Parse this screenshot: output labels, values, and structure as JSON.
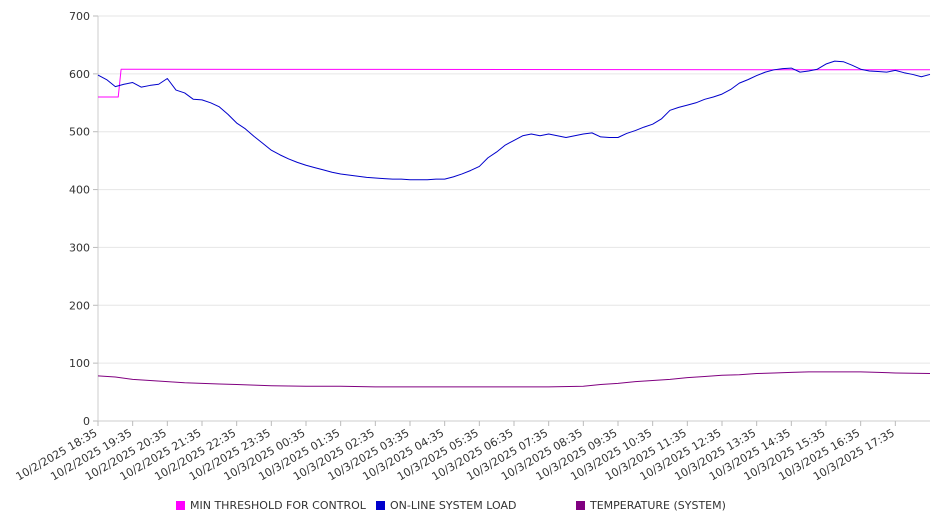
{
  "chart_data": {
    "type": "line",
    "ylim": [
      0,
      700
    ],
    "yticks": [
      0,
      100,
      200,
      300,
      400,
      500,
      600,
      700
    ],
    "x_start": "10/2/2025 18:35",
    "x_end": "10/3/2025 18:35",
    "x_tick_labels": [
      "10/2/2025 18:35",
      "10/2/2025 19:35",
      "10/2/2025 20:35",
      "10/2/2025 21:35",
      "10/2/2025 22:35",
      "10/2/2025 23:35",
      "10/3/2025 00:35",
      "10/3/2025 01:35",
      "10/3/2025 02:35",
      "10/3/2025 03:35",
      "10/3/2025 04:35",
      "10/3/2025 05:35",
      "10/3/2025 06:35",
      "10/3/2025 07:35",
      "10/3/2025 08:35",
      "10/3/2025 09:35",
      "10/3/2025 10:35",
      "10/3/2025 11:35",
      "10/3/2025 12:35",
      "10/3/2025 13:35",
      "10/3/2025 14:35",
      "10/3/2025 15:35",
      "10/3/2025 16:35",
      "10/3/2025 17:35"
    ],
    "grid": true,
    "legend_position": "bottom",
    "series": [
      {
        "name": "MIN THRESHOLD FOR CONTROL",
        "color": "#ff00ff",
        "points": [
          [
            "10/2/2025 18:35",
            560
          ],
          [
            "10/2/2025 19:10",
            560
          ],
          [
            "10/2/2025 19:15",
            608
          ],
          [
            "10/3/2025 18:35",
            607
          ]
        ]
      },
      {
        "name": "ON-LINE SYSTEM LOAD",
        "color": "#0000cc",
        "points": [
          [
            "10/2/2025 18:35",
            598
          ],
          [
            "10/2/2025 18:50",
            590
          ],
          [
            "10/2/2025 19:05",
            578
          ],
          [
            "10/2/2025 19:20",
            582
          ],
          [
            "10/2/2025 19:35",
            585
          ],
          [
            "10/2/2025 19:50",
            577
          ],
          [
            "10/2/2025 20:05",
            580
          ],
          [
            "10/2/2025 20:20",
            582
          ],
          [
            "10/2/2025 20:35",
            592
          ],
          [
            "10/2/2025 20:50",
            572
          ],
          [
            "10/2/2025 21:05",
            567
          ],
          [
            "10/2/2025 21:20",
            556
          ],
          [
            "10/2/2025 21:35",
            555
          ],
          [
            "10/2/2025 21:50",
            550
          ],
          [
            "10/2/2025 22:05",
            543
          ],
          [
            "10/2/2025 22:20",
            530
          ],
          [
            "10/2/2025 22:35",
            515
          ],
          [
            "10/2/2025 22:50",
            505
          ],
          [
            "10/2/2025 23:05",
            492
          ],
          [
            "10/2/2025 23:20",
            480
          ],
          [
            "10/2/2025 23:35",
            468
          ],
          [
            "10/2/2025 23:50",
            460
          ],
          [
            "10/3/2025 00:05",
            453
          ],
          [
            "10/3/2025 00:20",
            447
          ],
          [
            "10/3/2025 00:35",
            442
          ],
          [
            "10/3/2025 00:50",
            438
          ],
          [
            "10/3/2025 01:05",
            434
          ],
          [
            "10/3/2025 01:20",
            430
          ],
          [
            "10/3/2025 01:35",
            427
          ],
          [
            "10/3/2025 01:50",
            425
          ],
          [
            "10/3/2025 02:05",
            423
          ],
          [
            "10/3/2025 02:20",
            421
          ],
          [
            "10/3/2025 02:35",
            420
          ],
          [
            "10/3/2025 02:50",
            419
          ],
          [
            "10/3/2025 03:05",
            418
          ],
          [
            "10/3/2025 03:20",
            418
          ],
          [
            "10/3/2025 03:35",
            417
          ],
          [
            "10/3/2025 03:50",
            417
          ],
          [
            "10/3/2025 04:05",
            417
          ],
          [
            "10/3/2025 04:20",
            418
          ],
          [
            "10/3/2025 04:35",
            418
          ],
          [
            "10/3/2025 04:50",
            422
          ],
          [
            "10/3/2025 05:05",
            427
          ],
          [
            "10/3/2025 05:20",
            433
          ],
          [
            "10/3/2025 05:35",
            440
          ],
          [
            "10/3/2025 05:50",
            455
          ],
          [
            "10/3/2025 06:05",
            465
          ],
          [
            "10/3/2025 06:20",
            477
          ],
          [
            "10/3/2025 06:35",
            485
          ],
          [
            "10/3/2025 06:50",
            493
          ],
          [
            "10/3/2025 07:05",
            496
          ],
          [
            "10/3/2025 07:20",
            493
          ],
          [
            "10/3/2025 07:35",
            496
          ],
          [
            "10/3/2025 07:50",
            493
          ],
          [
            "10/3/2025 08:05",
            490
          ],
          [
            "10/3/2025 08:20",
            493
          ],
          [
            "10/3/2025 08:35",
            496
          ],
          [
            "10/3/2025 08:50",
            498
          ],
          [
            "10/3/2025 09:05",
            491
          ],
          [
            "10/3/2025 09:20",
            490
          ],
          [
            "10/3/2025 09:35",
            490
          ],
          [
            "10/3/2025 09:50",
            497
          ],
          [
            "10/3/2025 10:05",
            502
          ],
          [
            "10/3/2025 10:20",
            508
          ],
          [
            "10/3/2025 10:35",
            513
          ],
          [
            "10/3/2025 10:50",
            522
          ],
          [
            "10/3/2025 11:05",
            537
          ],
          [
            "10/3/2025 11:20",
            542
          ],
          [
            "10/3/2025 11:35",
            546
          ],
          [
            "10/3/2025 11:50",
            550
          ],
          [
            "10/3/2025 12:05",
            556
          ],
          [
            "10/3/2025 12:20",
            560
          ],
          [
            "10/3/2025 12:35",
            565
          ],
          [
            "10/3/2025 12:50",
            573
          ],
          [
            "10/3/2025 13:05",
            584
          ],
          [
            "10/3/2025 13:20",
            590
          ],
          [
            "10/3/2025 13:35",
            597
          ],
          [
            "10/3/2025 13:50",
            603
          ],
          [
            "10/3/2025 14:05",
            607
          ],
          [
            "10/3/2025 14:20",
            609
          ],
          [
            "10/3/2025 14:35",
            610
          ],
          [
            "10/3/2025 14:50",
            603
          ],
          [
            "10/3/2025 15:05",
            605
          ],
          [
            "10/3/2025 15:20",
            608
          ],
          [
            "10/3/2025 15:35",
            617
          ],
          [
            "10/3/2025 15:50",
            622
          ],
          [
            "10/3/2025 16:05",
            621
          ],
          [
            "10/3/2025 16:20",
            615
          ],
          [
            "10/3/2025 16:35",
            608
          ],
          [
            "10/3/2025 16:50",
            605
          ],
          [
            "10/3/2025 17:05",
            604
          ],
          [
            "10/3/2025 17:20",
            603
          ],
          [
            "10/3/2025 17:35",
            606
          ],
          [
            "10/3/2025 17:50",
            602
          ],
          [
            "10/3/2025 18:05",
            599
          ],
          [
            "10/3/2025 18:20",
            595
          ],
          [
            "10/3/2025 18:35",
            599
          ]
        ]
      },
      {
        "name": "TEMPERATURE (SYSTEM)",
        "color": "#800080",
        "points": [
          [
            "10/2/2025 18:35",
            78
          ],
          [
            "10/2/2025 19:05",
            76
          ],
          [
            "10/2/2025 19:35",
            72
          ],
          [
            "10/2/2025 20:05",
            70
          ],
          [
            "10/2/2025 20:35",
            68
          ],
          [
            "10/2/2025 21:05",
            66
          ],
          [
            "10/2/2025 21:35",
            65
          ],
          [
            "10/2/2025 22:05",
            64
          ],
          [
            "10/2/2025 22:35",
            63
          ],
          [
            "10/2/2025 23:05",
            62
          ],
          [
            "10/2/2025 23:35",
            61
          ],
          [
            "10/3/2025 00:35",
            60
          ],
          [
            "10/3/2025 01:35",
            60
          ],
          [
            "10/3/2025 02:35",
            59
          ],
          [
            "10/3/2025 03:35",
            59
          ],
          [
            "10/3/2025 04:35",
            59
          ],
          [
            "10/3/2025 05:35",
            59
          ],
          [
            "10/3/2025 06:35",
            59
          ],
          [
            "10/3/2025 07:35",
            59
          ],
          [
            "10/3/2025 08:35",
            60
          ],
          [
            "10/3/2025 09:05",
            63
          ],
          [
            "10/3/2025 09:35",
            65
          ],
          [
            "10/3/2025 10:05",
            68
          ],
          [
            "10/3/2025 10:35",
            70
          ],
          [
            "10/3/2025 11:05",
            72
          ],
          [
            "10/3/2025 11:35",
            75
          ],
          [
            "10/3/2025 12:05",
            77
          ],
          [
            "10/3/2025 12:35",
            79
          ],
          [
            "10/3/2025 13:05",
            80
          ],
          [
            "10/3/2025 13:35",
            82
          ],
          [
            "10/3/2025 14:05",
            83
          ],
          [
            "10/3/2025 14:35",
            84
          ],
          [
            "10/3/2025 15:05",
            85
          ],
          [
            "10/3/2025 15:35",
            85
          ],
          [
            "10/3/2025 16:05",
            85
          ],
          [
            "10/3/2025 16:35",
            85
          ],
          [
            "10/3/2025 17:05",
            84
          ],
          [
            "10/3/2025 17:35",
            83
          ],
          [
            "10/3/2025 18:35",
            82
          ]
        ]
      }
    ]
  }
}
